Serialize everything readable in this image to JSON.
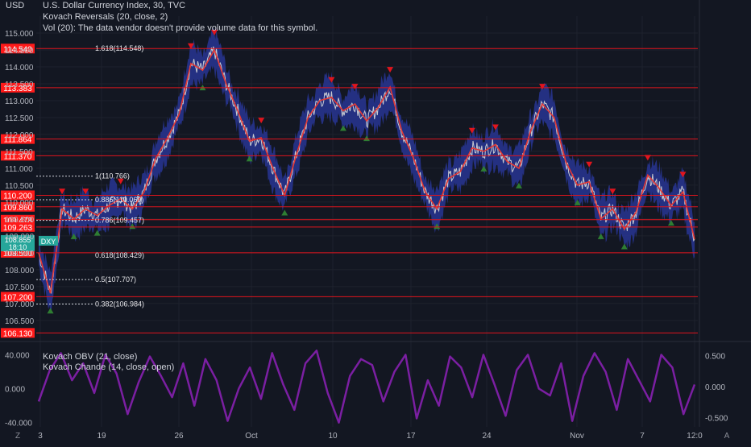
{
  "header": {
    "currency": "USD",
    "title": "U.S. Dollar Currency Index, 30, TVC",
    "indicator_1": "Kovach Reversals (20, close, 2)",
    "indicator_2": "Vol (20): The data vendor doesn't provide volume data for this symbol."
  },
  "oscillator": {
    "label_1": "Kovach OBV (21, close)",
    "label_2": "Kovach Chande (14, close, open)"
  },
  "x_axis_labels": [
    "3",
    "19",
    "26",
    "Oct",
    "10",
    "17",
    "24",
    "Nov",
    "7",
    "12:0"
  ],
  "bottom_icons": {
    "left": "Z",
    "right": "A"
  },
  "colors": {
    "background": "#131722",
    "level_line": "#e0151d",
    "price_tag_bg": "#ff1a1a",
    "dotted": "#d1d4dc",
    "band": "#283593",
    "ma": "#e53935",
    "price": "#c8cad2",
    "up_marker": "#2e7d32",
    "down_marker": "#e0151d",
    "current_tag": "#26a69a",
    "oscillator_line": "#7b1fa2"
  },
  "chart_data": [
    {
      "type": "line",
      "title": "U.S. Dollar Currency Index, 30, TVC",
      "ylabel": "USD",
      "ylim": [
        105.9,
        115.5
      ],
      "y_ticks": [
        "115.000",
        "114.500",
        "114.000",
        "113.500",
        "113.000",
        "112.500",
        "112.000",
        "111.500",
        "111.000",
        "110.500",
        "110.000",
        "109.500",
        "109.000",
        "108.500",
        "108.000",
        "107.500",
        "107.000",
        "106.500"
      ],
      "x_categories": [
        "3",
        "19",
        "26",
        "Oct",
        "10",
        "17",
        "24",
        "Nov",
        "7",
        "12:0"
      ],
      "series": [
        {
          "name": "DXY",
          "x": [
            0,
            3,
            6,
            9,
            12,
            15,
            18,
            21,
            24,
            27,
            30,
            33,
            36,
            39,
            42,
            45,
            48,
            51,
            54,
            57,
            60,
            63,
            66,
            69,
            72,
            75,
            78,
            81,
            84,
            87,
            90,
            93,
            96,
            99
          ],
          "values": [
            108.5,
            107.3,
            109.8,
            109.5,
            109.8,
            109.6,
            109.9,
            110.1,
            109.8,
            110.3,
            111.3,
            111.9,
            112.6,
            114.1,
            113.9,
            114.5,
            113.5,
            112.7,
            111.8,
            111.9,
            111.0,
            110.2,
            111.4,
            112.5,
            113.0,
            113.1,
            112.7,
            112.9,
            112.4,
            112.8,
            113.4,
            112.1,
            111.3,
            110.3
          ]
        }
      ],
      "series_tail": {
        "x": [
          102,
          105,
          108,
          111,
          114,
          117,
          120,
          123,
          126,
          129,
          132,
          135,
          138,
          141,
          144,
          147,
          150,
          153,
          156,
          159,
          162,
          165,
          168
        ],
        "values": [
          109.8,
          110.7,
          110.9,
          111.6,
          111.5,
          111.7,
          111.2,
          111.0,
          112.1,
          112.9,
          112.5,
          111.2,
          110.5,
          110.6,
          109.5,
          109.8,
          109.2,
          109.7,
          110.8,
          110.4,
          109.9,
          110.3,
          108.9
        ]
      },
      "levels": [
        {
          "price": 114.54,
          "label": "114.540"
        },
        {
          "price": 113.383,
          "label": "113.383"
        },
        {
          "price": 111.864,
          "label": "111.864"
        },
        {
          "price": 111.37,
          "label": "111.370"
        },
        {
          "price": 110.2,
          "label": "110.200"
        },
        {
          "price": 109.86,
          "label": "109.860"
        },
        {
          "price": 109.478,
          "label": "109.478"
        },
        {
          "price": 109.263,
          "label": "109.263"
        },
        {
          "price": 108.5,
          "label": "108.500"
        },
        {
          "price": 107.2,
          "label": "107.200"
        },
        {
          "price": 106.13,
          "label": "106.130"
        }
      ],
      "fib_levels": [
        {
          "price": 114.548,
          "label": "1.618(114.548)",
          "dotted": false
        },
        {
          "price": 110.766,
          "label": "1(110.766)",
          "dotted": true
        },
        {
          "price": 110.069,
          "label": "0.886(110.069)",
          "dotted": true
        },
        {
          "price": 109.457,
          "label": "0.786(109.457)",
          "dotted": true
        },
        {
          "price": 108.429,
          "label": "0.618(108.429)",
          "dotted": false
        },
        {
          "price": 107.707,
          "label": "0.5(107.707)",
          "dotted": true
        },
        {
          "price": 106.984,
          "label": "0.382(106.984)",
          "dotted": true
        }
      ],
      "current": {
        "price": 108.855,
        "label": "108.855",
        "time_label": "18:10",
        "symbol": "DXY"
      }
    },
    {
      "type": "line",
      "title": "Kovach Chande (14, close, open)",
      "ylim": [
        -45,
        50
      ],
      "left_ticks": [
        {
          "value": 40,
          "label": "40.000"
        },
        {
          "value": 0,
          "label": "0.000"
        },
        {
          "value": -40,
          "label": "-40.000"
        }
      ],
      "right_ticks": [
        {
          "value": 0.5,
          "label": "0.500"
        },
        {
          "value": 0,
          "label": "0.000"
        },
        {
          "value": -0.5,
          "label": "-0.500"
        }
      ],
      "series": [
        {
          "name": "Kovach Chande (14, close, open)",
          "values": [
            -15,
            22,
            42,
            10,
            30,
            -5,
            40,
            18,
            -30,
            8,
            38,
            15,
            -10,
            30,
            -20,
            35,
            10,
            -38,
            0,
            25,
            -12,
            42,
            5,
            -25,
            30,
            45,
            -5,
            -40,
            15,
            35,
            28,
            -15,
            20,
            40,
            -35,
            10,
            -20,
            38,
            25,
            -10,
            40,
            5,
            -32,
            22,
            40,
            0,
            -8,
            30,
            -38,
            15,
            42,
            20,
            -25,
            35,
            10,
            -15,
            40,
            25,
            -30,
            5
          ]
        }
      ]
    }
  ]
}
